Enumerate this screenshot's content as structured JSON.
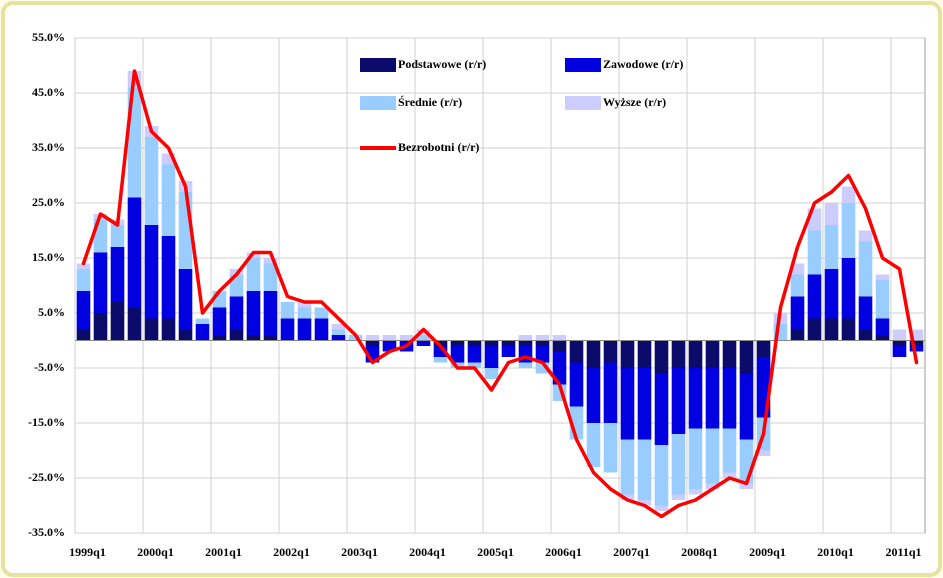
{
  "chart_data": {
    "type": "stacked_bar_line",
    "categories": [
      "1999q1",
      null,
      null,
      null,
      "2000q1",
      null,
      null,
      null,
      "2001q1",
      null,
      null,
      null,
      "2002q1",
      null,
      null,
      null,
      "2003q1",
      null,
      null,
      null,
      "2004q1",
      null,
      null,
      null,
      "2005q1",
      null,
      null,
      null,
      "2006q1",
      null,
      null,
      null,
      "2007q1",
      null,
      null,
      null,
      "2008q1",
      null,
      null,
      null,
      "2009q1",
      null,
      null,
      null,
      "2010q1",
      null,
      null,
      null,
      "2011q1",
      null
    ],
    "series": [
      {
        "name": "Podstawowe (r/r)",
        "color": "#0b0b6b",
        "kind": "bar",
        "values": [
          2,
          5,
          7,
          6,
          4,
          4,
          2,
          0,
          1,
          2,
          1,
          1,
          0,
          0,
          0,
          0,
          0,
          -1,
          0,
          0,
          0,
          -1,
          -1,
          -1,
          -1,
          -1,
          -1,
          -1,
          -2,
          -4,
          -5,
          -4,
          -5,
          -5,
          -6,
          -5,
          -5,
          -5,
          -5,
          -6,
          -3,
          0,
          2,
          4,
          4,
          4,
          2,
          1,
          -1,
          -1
        ]
      },
      {
        "name": "Zawodowe (r/r)",
        "color": "#0000e0",
        "kind": "bar",
        "values": [
          7,
          11,
          10,
          20,
          17,
          15,
          11,
          3,
          5,
          6,
          8,
          8,
          4,
          4,
          4,
          1,
          0,
          -3,
          -2,
          -2,
          -1,
          -2,
          -3,
          -3,
          -4,
          -2,
          -3,
          -3,
          -6,
          -8,
          -10,
          -11,
          -13,
          -13,
          -13,
          -12,
          -11,
          -11,
          -11,
          -12,
          -11,
          0,
          6,
          8,
          9,
          11,
          6,
          3,
          -2,
          -1
        ]
      },
      {
        "name": "Średnie (r/r)",
        "color": "#99ccff",
        "kind": "bar",
        "values": [
          4,
          6,
          4,
          20,
          16,
          13,
          14,
          1,
          3,
          4,
          6,
          5,
          3,
          2,
          2,
          1,
          1,
          0,
          0,
          0,
          1,
          -1,
          -1,
          -1,
          -2,
          0,
          -1,
          -2,
          -3,
          -6,
          -8,
          -9,
          -10,
          -11,
          -11,
          -11,
          -11,
          -10,
          -8,
          -8,
          -6,
          3,
          4,
          8,
          8,
          10,
          10,
          7,
          0,
          0
        ]
      },
      {
        "name": "Wyższe (r/r)",
        "color": "#ccccff",
        "kind": "bar",
        "values": [
          1,
          1,
          1,
          3,
          2,
          2,
          2,
          0,
          0,
          1,
          1,
          1,
          0,
          1,
          0,
          1,
          0,
          1,
          1,
          1,
          1,
          0,
          0,
          0,
          0,
          0,
          1,
          1,
          1,
          0,
          0,
          0,
          -1,
          -1,
          -1,
          -1,
          -1,
          -1,
          -1,
          -1,
          -1,
          2,
          2,
          4,
          4,
          3,
          2,
          1,
          2,
          2
        ]
      },
      {
        "name": "Bezrobotni (r/r)",
        "color": "#ff0000",
        "kind": "line",
        "values": [
          14,
          23,
          21,
          49,
          38,
          35,
          28,
          5,
          9,
          12,
          16,
          16,
          8,
          7,
          7,
          4,
          1,
          -4,
          -2,
          -1,
          2,
          -1,
          -5,
          -5,
          -9,
          -4,
          -3,
          -4,
          -8,
          -18,
          -24,
          -27,
          -29,
          -30,
          -32,
          -30,
          -29,
          -27,
          -25,
          -26,
          -17,
          6,
          17,
          25,
          27,
          30,
          24,
          15,
          13,
          -4
        ]
      }
    ],
    "ylim": [
      -35,
      55
    ],
    "yticks": [
      {
        "value": -35,
        "label": "-35.0%"
      },
      {
        "value": -25,
        "label": "-25.0%"
      },
      {
        "value": -15,
        "label": "-15.0%"
      },
      {
        "value": -5,
        "label": "-5.0%"
      },
      {
        "value": 5,
        "label": "5.0%"
      },
      {
        "value": 15,
        "label": "15.0%"
      },
      {
        "value": 25,
        "label": "25.0%"
      },
      {
        "value": 35,
        "label": "35.0%"
      },
      {
        "value": 45,
        "label": "45.0%"
      },
      {
        "value": 55,
        "label": "55.0%"
      }
    ],
    "grid": true,
    "legend": "top"
  }
}
